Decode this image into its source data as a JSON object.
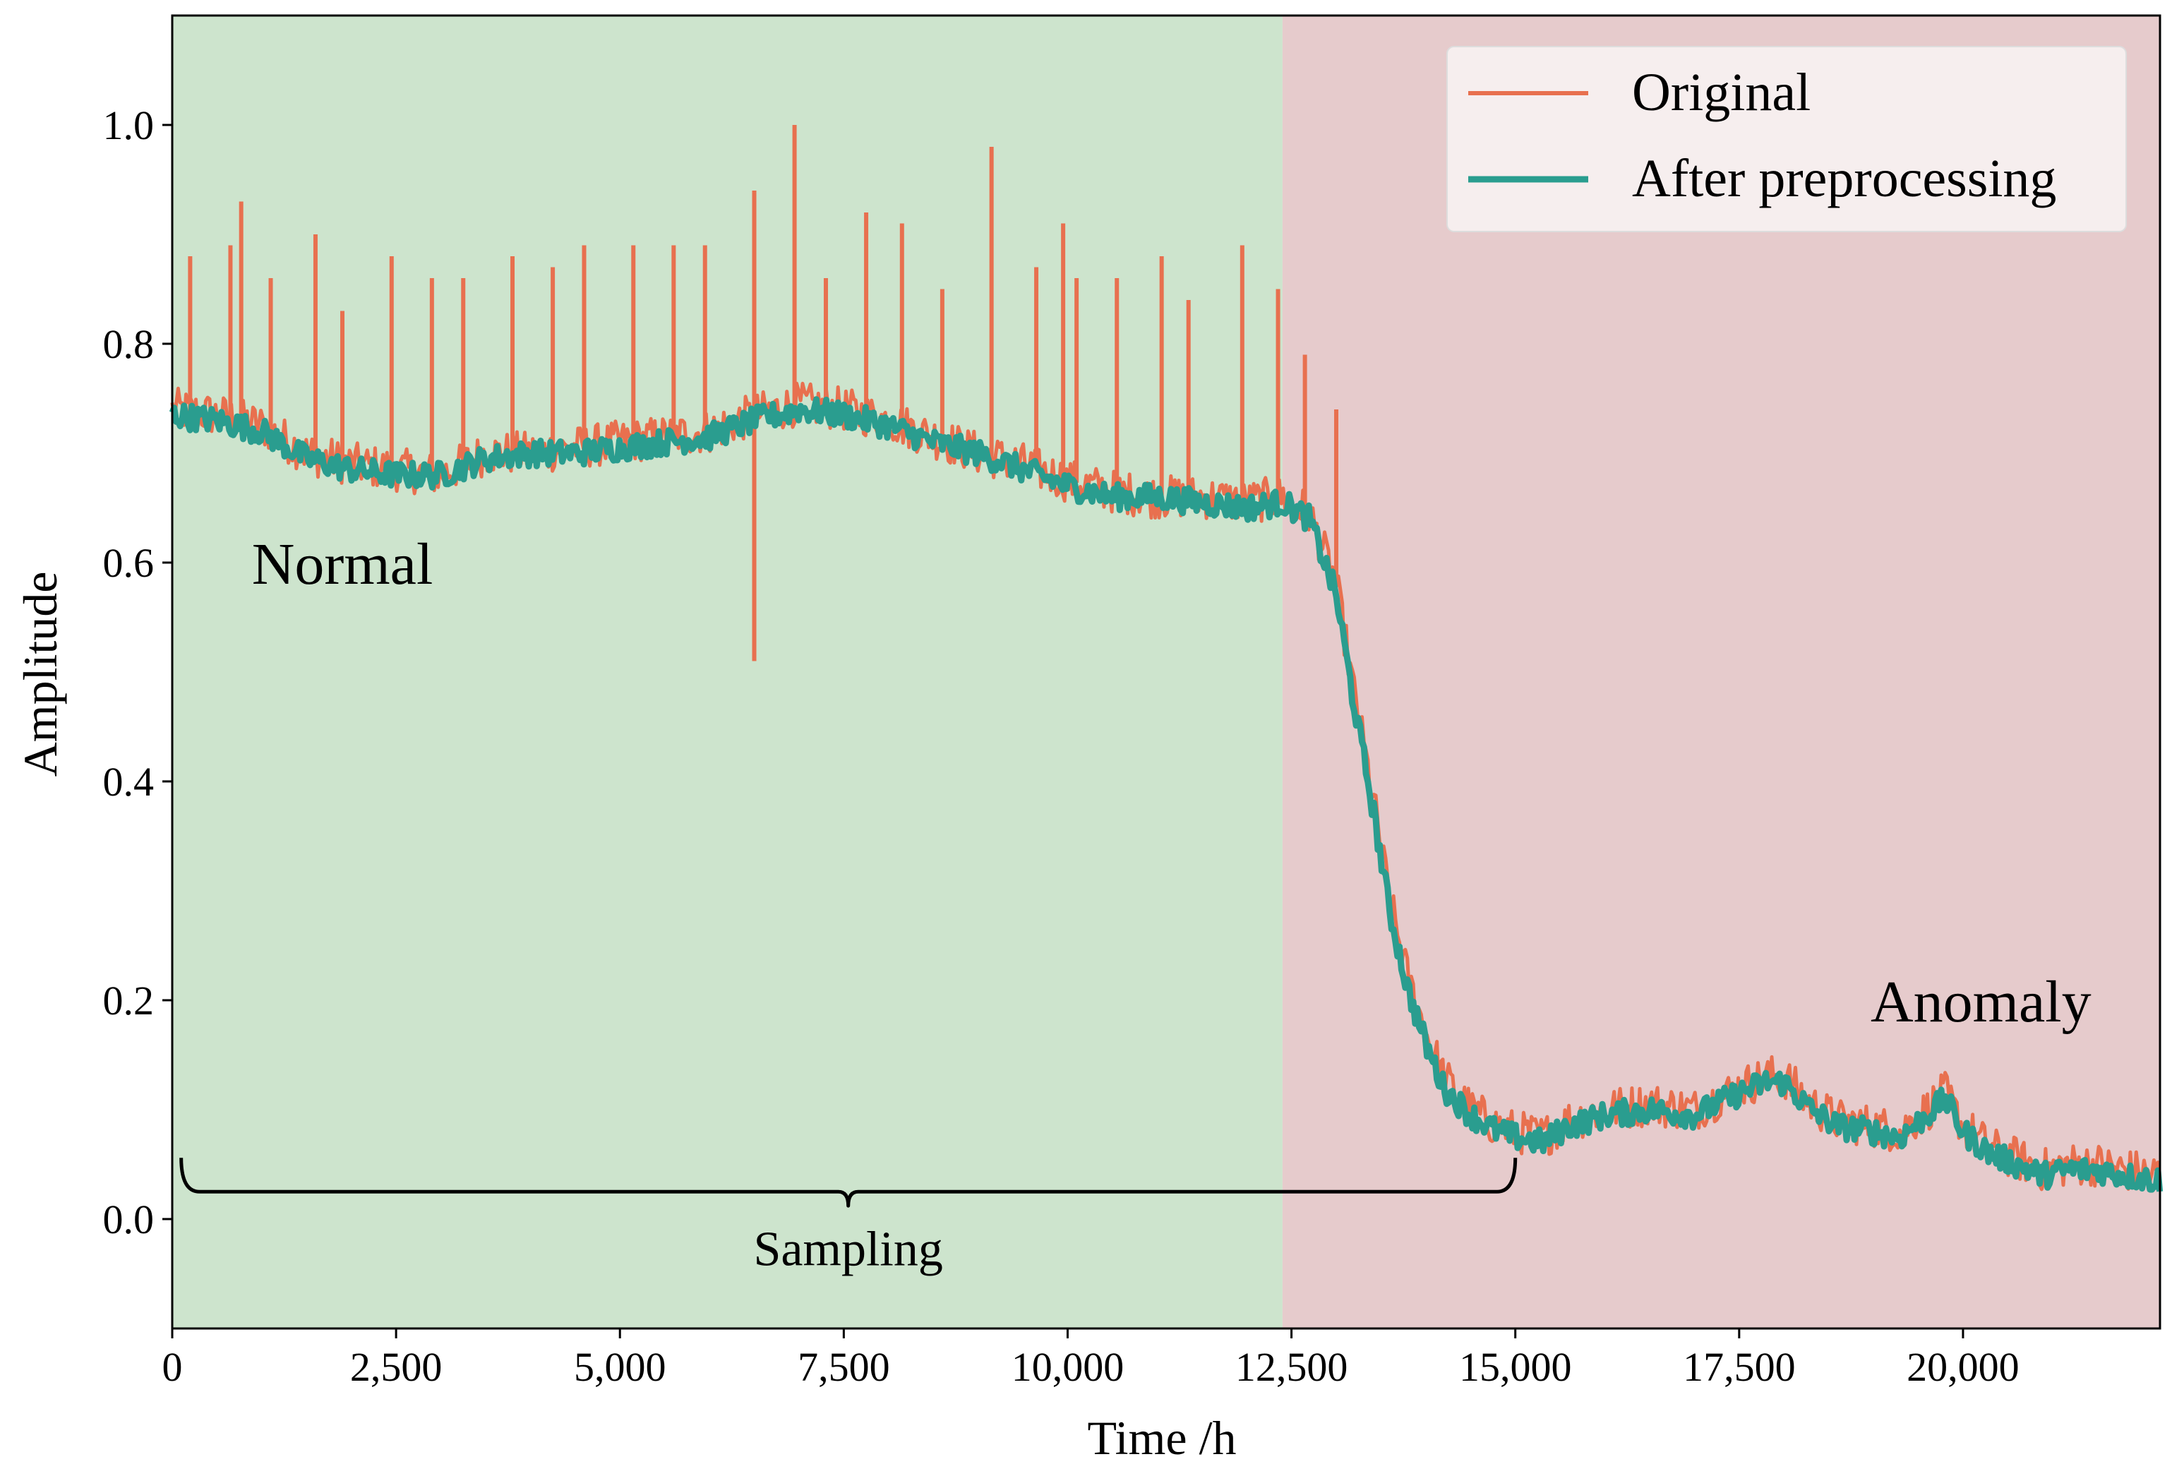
{
  "chart_data": {
    "type": "line",
    "title": "",
    "xlabel": "Time /h",
    "ylabel": "Amplitude",
    "xlim": [
      0,
      22200
    ],
    "ylim": [
      -0.1,
      1.1
    ],
    "xticks": [
      0,
      2500,
      5000,
      7500,
      10000,
      12500,
      15000,
      17500,
      20000
    ],
    "xtick_labels": [
      "0",
      "2,500",
      "5,000",
      "7,500",
      "10,000",
      "12,500",
      "15,000",
      "17,500",
      "20,000"
    ],
    "yticks": [
      0.0,
      0.2,
      0.4,
      0.6,
      0.8,
      1.0
    ],
    "ytick_labels": [
      "0.0",
      "0.2",
      "0.4",
      "0.6",
      "0.8",
      "1.0"
    ],
    "grid": false,
    "legend_position": "top-right",
    "regions": [
      {
        "name": "Normal",
        "x_start": 0,
        "x_end": 12400,
        "color": "#cde4cd"
      },
      {
        "name": "Anomaly",
        "x_start": 12400,
        "x_end": 22200,
        "color": "#e6cbcc"
      }
    ],
    "region_labels": [
      {
        "text": "Normal",
        "x": 1900,
        "y": 0.6
      },
      {
        "text": "Anomaly",
        "x": 20200,
        "y": 0.2
      }
    ],
    "bracket": {
      "label": "Sampling",
      "x_start": 100,
      "x_end": 15000,
      "y": 0.025
    },
    "series": [
      {
        "name": "Original",
        "color": "#e8704f",
        "x": [
          0,
          500,
          1000,
          1500,
          2000,
          2500,
          3000,
          3500,
          4000,
          4500,
          5000,
          5500,
          6000,
          6500,
          7000,
          7500,
          8000,
          8500,
          9000,
          9500,
          10000,
          10500,
          11000,
          11500,
          12000,
          12400,
          12700,
          13000,
          13200,
          13400,
          13600,
          13800,
          14000,
          14200,
          14500,
          14800,
          15000,
          15300,
          15600,
          16000,
          16500,
          17000,
          17500,
          17800,
          18000,
          18300,
          18600,
          19000,
          19300,
          19600,
          19800,
          20000,
          20300,
          20600,
          20900,
          21200,
          21500,
          21800,
          22200
        ],
        "values": [
          0.74,
          0.735,
          0.725,
          0.7,
          0.69,
          0.685,
          0.68,
          0.7,
          0.7,
          0.705,
          0.71,
          0.715,
          0.72,
          0.735,
          0.745,
          0.74,
          0.73,
          0.715,
          0.7,
          0.69,
          0.675,
          0.665,
          0.66,
          0.66,
          0.655,
          0.66,
          0.645,
          0.58,
          0.48,
          0.39,
          0.29,
          0.22,
          0.17,
          0.13,
          0.1,
          0.085,
          0.08,
          0.075,
          0.09,
          0.1,
          0.105,
          0.1,
          0.12,
          0.13,
          0.13,
          0.105,
          0.09,
          0.085,
          0.08,
          0.1,
          0.115,
          0.085,
          0.065,
          0.055,
          0.045,
          0.05,
          0.05,
          0.045,
          0.04
        ]
      },
      {
        "name": "After preprocessing",
        "color": "#2a9d8f",
        "x": [
          0,
          500,
          1000,
          1500,
          2000,
          2500,
          3000,
          3500,
          4000,
          4500,
          5000,
          5500,
          6000,
          6500,
          7000,
          7500,
          8000,
          8500,
          9000,
          9500,
          10000,
          10500,
          11000,
          11500,
          12000,
          12400,
          12700,
          13000,
          13200,
          13400,
          13600,
          13800,
          14000,
          14200,
          14500,
          14800,
          15000,
          15300,
          15600,
          16000,
          16500,
          17000,
          17500,
          17800,
          18000,
          18300,
          18600,
          19000,
          19300,
          19600,
          19800,
          20000,
          20300,
          20600,
          20900,
          21200,
          21500,
          21800,
          22200
        ],
        "values": [
          0.735,
          0.73,
          0.72,
          0.695,
          0.685,
          0.68,
          0.68,
          0.695,
          0.7,
          0.7,
          0.705,
          0.71,
          0.715,
          0.73,
          0.74,
          0.735,
          0.725,
          0.71,
          0.7,
          0.685,
          0.67,
          0.66,
          0.66,
          0.655,
          0.65,
          0.655,
          0.64,
          0.57,
          0.47,
          0.38,
          0.28,
          0.21,
          0.16,
          0.12,
          0.095,
          0.08,
          0.075,
          0.07,
          0.085,
          0.095,
          0.1,
          0.095,
          0.115,
          0.125,
          0.125,
          0.1,
          0.085,
          0.08,
          0.075,
          0.095,
          0.11,
          0.08,
          0.06,
          0.05,
          0.04,
          0.045,
          0.045,
          0.04,
          0.035
        ]
      }
    ],
    "spikes": {
      "series": "Original",
      "points": [
        {
          "x": 200,
          "y": 0.88
        },
        {
          "x": 650,
          "y": 0.89
        },
        {
          "x": 770,
          "y": 0.93
        },
        {
          "x": 1100,
          "y": 0.86
        },
        {
          "x": 1600,
          "y": 0.9
        },
        {
          "x": 1900,
          "y": 0.83
        },
        {
          "x": 2450,
          "y": 0.88
        },
        {
          "x": 2900,
          "y": 0.86
        },
        {
          "x": 3250,
          "y": 0.86
        },
        {
          "x": 3800,
          "y": 0.88
        },
        {
          "x": 4250,
          "y": 0.87
        },
        {
          "x": 4600,
          "y": 0.89
        },
        {
          "x": 5150,
          "y": 0.89
        },
        {
          "x": 5600,
          "y": 0.89
        },
        {
          "x": 5950,
          "y": 0.89
        },
        {
          "x": 6500,
          "y": 0.94
        },
        {
          "x": 6500,
          "y": 0.51
        },
        {
          "x": 6950,
          "y": 1.0
        },
        {
          "x": 7300,
          "y": 0.86
        },
        {
          "x": 7750,
          "y": 0.92
        },
        {
          "x": 8150,
          "y": 0.91
        },
        {
          "x": 8600,
          "y": 0.85
        },
        {
          "x": 9150,
          "y": 0.98
        },
        {
          "x": 9650,
          "y": 0.87
        },
        {
          "x": 9950,
          "y": 0.91
        },
        {
          "x": 10100,
          "y": 0.86
        },
        {
          "x": 10550,
          "y": 0.86
        },
        {
          "x": 11050,
          "y": 0.88
        },
        {
          "x": 11350,
          "y": 0.84
        },
        {
          "x": 11950,
          "y": 0.89
        },
        {
          "x": 12350,
          "y": 0.85
        },
        {
          "x": 12650,
          "y": 0.79
        },
        {
          "x": 13000,
          "y": 0.74
        }
      ]
    }
  }
}
